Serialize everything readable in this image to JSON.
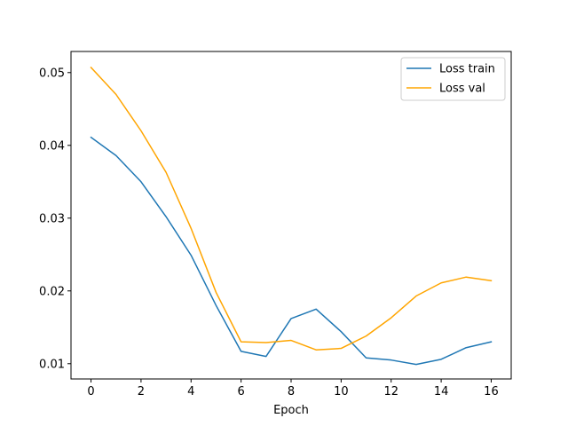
{
  "chart_data": {
    "type": "line",
    "title": "",
    "xlabel": "Epoch",
    "ylabel": "",
    "xlim": [
      -0.8,
      16.8
    ],
    "ylim": [
      0.0079,
      0.0529
    ],
    "xticks": [
      0,
      2,
      4,
      6,
      8,
      10,
      12,
      14,
      16
    ],
    "yticks": [
      0.01,
      0.02,
      0.03,
      0.04,
      0.05
    ],
    "xtick_labels": [
      "0",
      "2",
      "4",
      "6",
      "8",
      "10",
      "12",
      "14",
      "16"
    ],
    "ytick_labels": [
      "0.01",
      "0.02",
      "0.03",
      "0.04",
      "0.05"
    ],
    "grid": false,
    "legend_position": "top-right",
    "x": [
      0,
      1,
      2,
      3,
      4,
      5,
      6,
      7,
      8,
      9,
      10,
      11,
      12,
      13,
      14,
      15,
      16
    ],
    "series": [
      {
        "name": "Loss train",
        "color": "#1f77b4",
        "values": [
          0.0411,
          0.0386,
          0.035,
          0.0302,
          0.0249,
          0.018,
          0.0117,
          0.011,
          0.0162,
          0.0175,
          0.0144,
          0.0108,
          0.0105,
          0.0099,
          0.0106,
          0.0122,
          0.013
        ]
      },
      {
        "name": "Loss val",
        "color": "#ffa500",
        "values": [
          0.0507,
          0.047,
          0.042,
          0.0363,
          0.0286,
          0.0198,
          0.013,
          0.0129,
          0.0132,
          0.0119,
          0.0121,
          0.0138,
          0.0163,
          0.0193,
          0.0211,
          0.0219,
          0.0214
        ]
      }
    ]
  }
}
